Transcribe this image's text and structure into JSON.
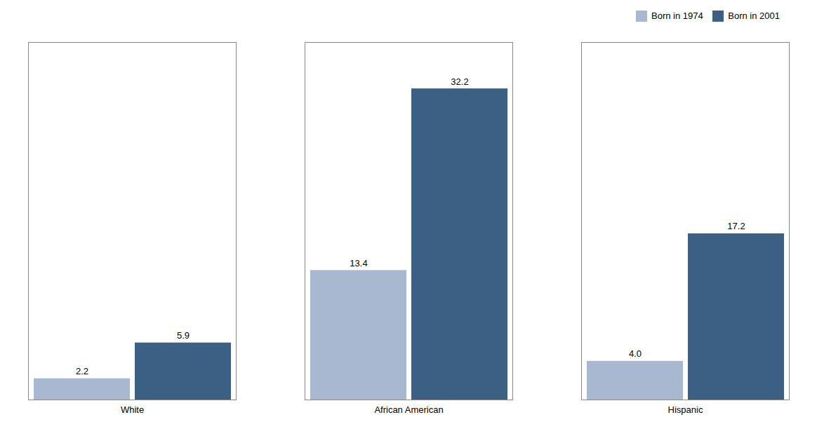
{
  "chart_data": {
    "type": "bar",
    "categories": [
      "White",
      "African American",
      "Hispanic"
    ],
    "series": [
      {
        "name": "Born in 1974",
        "color": "#a8b8d0",
        "values": [
          2.2,
          13.4,
          4.0
        ],
        "value_labels": [
          "2.2",
          "13.4",
          "4.0"
        ]
      },
      {
        "name": "Born in 2001",
        "color": "#3c5f84",
        "values": [
          5.9,
          32.2,
          17.2
        ]
      }
    ],
    "ylim": [
      0,
      37
    ],
    "data_labels": true,
    "tick_labels": "x",
    "legend": "upper right",
    "grid": false
  }
}
